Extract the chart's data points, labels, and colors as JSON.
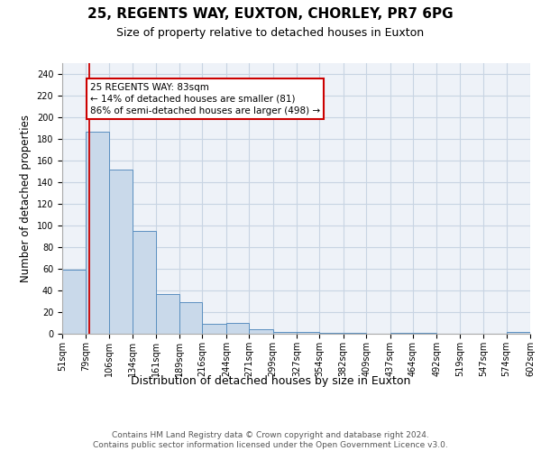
{
  "title1": "25, REGENTS WAY, EUXTON, CHORLEY, PR7 6PG",
  "title2": "Size of property relative to detached houses in Euxton",
  "xlabel": "Distribution of detached houses by size in Euxton",
  "ylabel": "Number of detached properties",
  "bar_values": [
    59,
    187,
    152,
    95,
    37,
    29,
    9,
    10,
    4,
    2,
    2,
    1,
    1,
    0,
    1,
    1,
    0,
    0,
    0,
    2
  ],
  "bin_edges": [
    51,
    79,
    106,
    134,
    161,
    189,
    216,
    244,
    271,
    299,
    327,
    354,
    382,
    409,
    437,
    464,
    492,
    519,
    547,
    574,
    602
  ],
  "tick_labels": [
    "51sqm",
    "79sqm",
    "106sqm",
    "134sqm",
    "161sqm",
    "189sqm",
    "216sqm",
    "244sqm",
    "271sqm",
    "299sqm",
    "327sqm",
    "354sqm",
    "382sqm",
    "409sqm",
    "437sqm",
    "464sqm",
    "492sqm",
    "519sqm",
    "547sqm",
    "574sqm",
    "602sqm"
  ],
  "bar_color": "#c9d9ea",
  "bar_edge_color": "#5a8fc0",
  "vline_x": 83,
  "vline_color": "#cc0000",
  "annotation_text": "25 REGENTS WAY: 83sqm\n← 14% of detached houses are smaller (81)\n86% of semi-detached houses are larger (498) →",
  "annotation_box_color": "#cc0000",
  "ylim": [
    0,
    250
  ],
  "yticks": [
    0,
    20,
    40,
    60,
    80,
    100,
    120,
    140,
    160,
    180,
    200,
    220,
    240
  ],
  "grid_color": "#c8d4e3",
  "bg_color": "#eef2f8",
  "footer_text": "Contains HM Land Registry data © Crown copyright and database right 2024.\nContains public sector information licensed under the Open Government Licence v3.0.",
  "title1_fontsize": 11,
  "title2_fontsize": 9,
  "ylabel_fontsize": 8.5,
  "xlabel_fontsize": 9,
  "tick_fontsize": 7,
  "footer_fontsize": 6.5,
  "ann_fontsize": 7.5
}
